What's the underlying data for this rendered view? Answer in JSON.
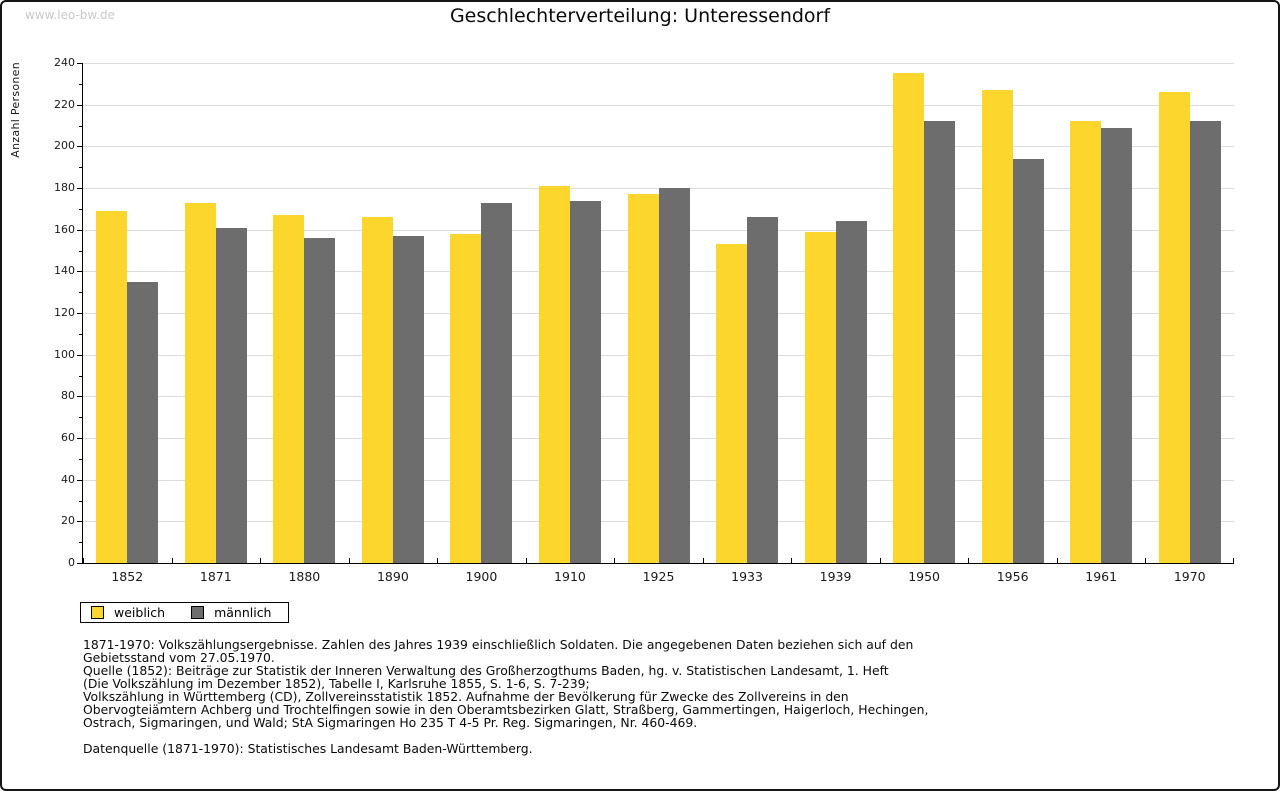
{
  "page": {
    "watermark": "www.leo-bw.de"
  },
  "chart_data": {
    "type": "bar",
    "title": "Geschlechterverteilung: Unteressendorf",
    "xlabel": "",
    "ylabel": "Anzahl Personen",
    "ylim": [
      0,
      240
    ],
    "ytick_step": 20,
    "ytick_minor_step": 10,
    "grid": true,
    "legend_position": "bottom-left",
    "categories": [
      "1852",
      "1871",
      "1880",
      "1890",
      "1900",
      "1910",
      "1925",
      "1933",
      "1939",
      "1950",
      "1956",
      "1961",
      "1970"
    ],
    "series": [
      {
        "name": "weiblich",
        "color": "#fdd62d",
        "values": [
          169,
          173,
          167,
          166,
          158,
          181,
          177,
          153,
          159,
          235,
          227,
          212,
          226
        ]
      },
      {
        "name": "männlich",
        "color": "#6d6d6d",
        "values": [
          135,
          161,
          156,
          157,
          173,
          174,
          180,
          166,
          164,
          212,
          194,
          209,
          212
        ]
      }
    ]
  },
  "colors": {
    "gridline": "#dcdcdc",
    "axis": "#000000",
    "watermark": "#c9c9c9"
  },
  "footer": {
    "lines": [
      "1871-1970: Volkszählungsergebnisse. Zahlen des Jahres 1939 einschließlich Soldaten. Die angegebenen Daten beziehen sich auf den",
      "Gebietsstand vom 27.05.1970.",
      "Quelle (1852): Beiträge zur Statistik der Inneren Verwaltung des Großherzogthums Baden, hg. v. Statistischen Landesamt, 1. Heft",
      "(Die Volkszählung im Dezember 1852), Tabelle I, Karlsruhe 1855, S. 1-6, S. 7-239;",
      "Volkszählung in Württemberg (CD), Zollvereinsstatistik 1852. Aufnahme der Bevölkerung für Zwecke des Zollvereins in den",
      "Obervogteiämtern Achberg und Trochtelfingen sowie in den Oberamtsbezirken Glatt, Straßberg, Gammertingen, Haigerloch, Hechingen,",
      "Ostrach, Sigmaringen, und Wald; StA Sigmaringen Ho 235 T 4-5 Pr. Reg. Sigmaringen, Nr. 460-469."
    ],
    "datenquelle": "Datenquelle (1871-1970): Statistisches Landesamt Baden-Württemberg."
  }
}
